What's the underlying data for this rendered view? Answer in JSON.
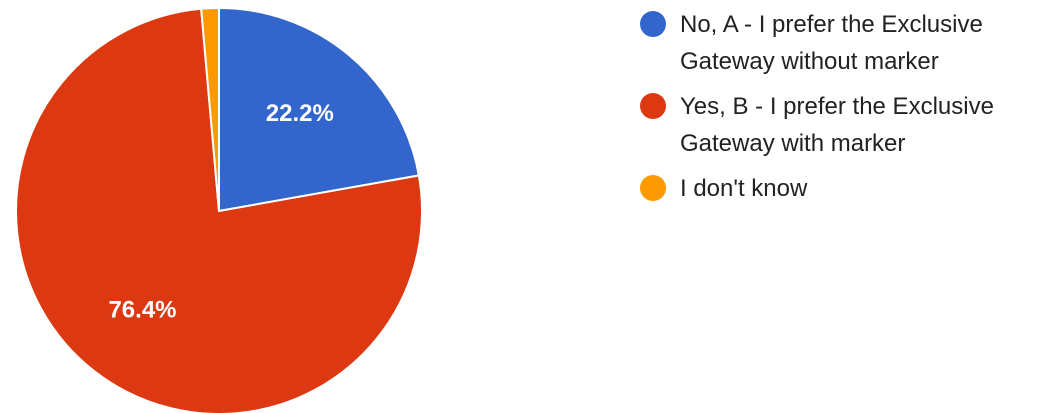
{
  "chart_data": {
    "type": "pie",
    "slices": [
      {
        "label": "No, A - I prefer the Exclusive Gateway without marker",
        "value": 22.2,
        "display": "22.2%",
        "color": "#3366cc",
        "show_label": true
      },
      {
        "label": "Yes, B - I prefer the Exclusive Gateway with marker",
        "value": 76.4,
        "display": "76.4%",
        "color": "#dc3912",
        "show_label": true
      },
      {
        "label": "I don't know",
        "value": 1.4,
        "display": "",
        "color": "#ff9900",
        "show_label": false
      }
    ],
    "legend_position": "right",
    "start_angle_deg": 0,
    "direction": "clockwise"
  },
  "legend": {
    "items": [
      {
        "label": "No, A - I prefer the Exclusive Gateway without marker",
        "color": "#3366cc"
      },
      {
        "label": "Yes, B - I prefer the Exclusive Gateway with marker",
        "color": "#dc3912"
      },
      {
        "label": "I don't know",
        "color": "#ff9900"
      }
    ]
  }
}
